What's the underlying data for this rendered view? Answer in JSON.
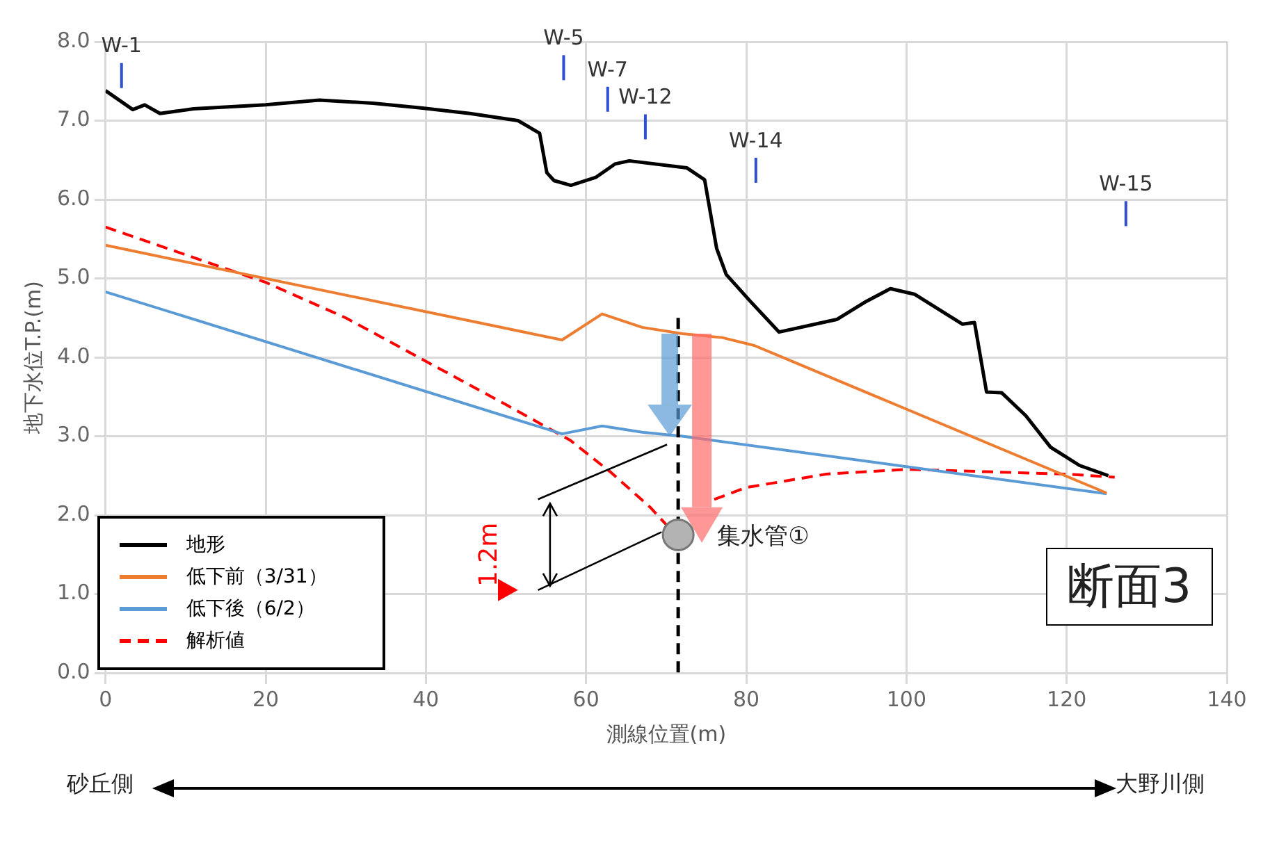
{
  "chart_data": {
    "type": "line",
    "xlabel": "測線位置(m)",
    "ylabel": "地下水位T.P.(m)",
    "xlim": [
      0,
      140
    ],
    "xticks": [
      0,
      20,
      40,
      60,
      80,
      100,
      120,
      140
    ],
    "ylim": [
      0,
      8
    ],
    "yticks": [
      {
        "value": 0,
        "label": "0.0"
      },
      {
        "value": 1,
        "label": "1.0"
      },
      {
        "value": 2,
        "label": "2.0"
      },
      {
        "value": 3,
        "label": "3.0"
      },
      {
        "value": 4,
        "label": "4.0"
      },
      {
        "value": 5,
        "label": "5.0"
      },
      {
        "value": 6,
        "label": "6.0"
      },
      {
        "value": 7,
        "label": "7.0"
      },
      {
        "value": 8,
        "label": "8.0"
      }
    ],
    "grid": true,
    "legend": "bottom left",
    "marker": "none",
    "series": [
      {
        "name": "地形",
        "color": "#000000",
        "line_style": "solid",
        "x": [
          0,
          3.4,
          4.9,
          6.8,
          11,
          20,
          26.7,
          33.4,
          39.4,
          45.5,
          51.5,
          54.2,
          55.1,
          56,
          58.1,
          61.2,
          63.6,
          65.4,
          72.6,
          74.8,
          76.3,
          77.5,
          80.5,
          84.1,
          91.3,
          95,
          98,
          101,
          107,
          108.5,
          110,
          111.9,
          114.9,
          118,
          121.6,
          125.2
        ],
        "values": [
          7.38,
          7.14,
          7.2,
          7.09,
          7.15,
          7.2,
          7.26,
          7.22,
          7.16,
          7.09,
          7.0,
          6.84,
          6.34,
          6.24,
          6.18,
          6.28,
          6.45,
          6.49,
          6.4,
          6.25,
          5.38,
          5.05,
          4.71,
          4.32,
          4.48,
          4.71,
          4.87,
          4.8,
          4.42,
          4.44,
          3.56,
          3.55,
          3.26,
          2.86,
          2.63,
          2.5
        ]
      },
      {
        "name": "低下前（3/31）",
        "color": "#ed7d31",
        "line_style": "solid",
        "x": [
          0,
          57,
          62,
          67,
          72,
          77,
          81,
          125
        ],
        "values": [
          5.42,
          4.22,
          4.55,
          4.38,
          4.3,
          4.25,
          4.15,
          2.28
        ]
      },
      {
        "name": "低下後（6/2）",
        "color": "#5b9bd5",
        "line_style": "solid",
        "x": [
          0,
          57,
          62,
          67,
          72,
          125
        ],
        "values": [
          4.83,
          3.03,
          3.13,
          3.05,
          3.0,
          2.27
        ]
      },
      {
        "name": "解析値",
        "color": "#ff0000",
        "line_style": "dashed",
        "x": [
          0,
          10,
          20,
          30,
          40,
          50,
          58,
          63,
          68,
          70,
          72,
          76,
          80,
          90,
          100,
          110,
          120,
          126
        ],
        "values": [
          5.65,
          5.3,
          4.95,
          4.5,
          3.95,
          3.4,
          2.95,
          2.55,
          2.1,
          1.88,
          null,
          2.2,
          2.35,
          2.52,
          2.58,
          2.55,
          2.52,
          2.48
        ]
      }
    ],
    "ref_lines": [
      {
        "axis": "x",
        "value": 71.5,
        "color": "#000000",
        "line_style": "dashed"
      }
    ],
    "annotations": [
      "W-1",
      "W-5",
      "W-7",
      "W-12",
      "W-14",
      "W-15",
      "集水管①",
      "1.2m",
      "断面3",
      "砂丘側",
      "大野川側"
    ]
  }
}
